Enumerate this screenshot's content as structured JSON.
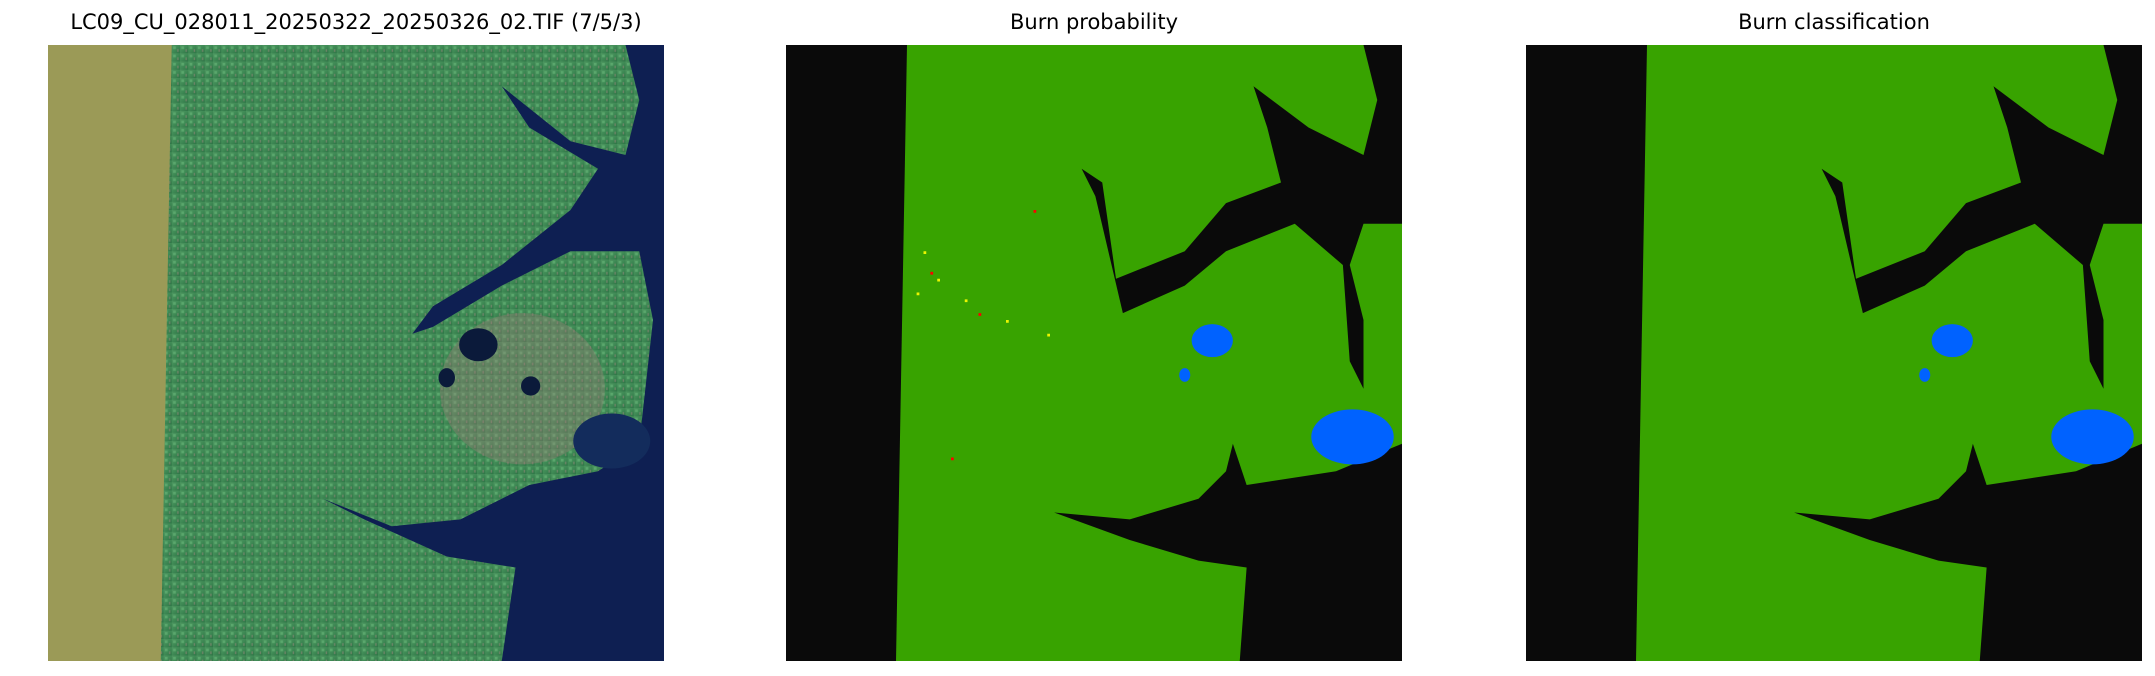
{
  "figure": {
    "panels": [
      {
        "title": "LC09_CU_028011_20250322_20250326_02.TIF (7/5/3)",
        "content": "false-color composite (bands 7/5/3)"
      },
      {
        "title": "Burn probability"
      },
      {
        "title": "Burn classification"
      }
    ],
    "colors": {
      "nodata_rgb": "#9b9a57",
      "land_rgb": "#3f8a55",
      "water_rgb": "#0e1f52",
      "unburned": "#38a300",
      "water_nodata": "#0a0a0a",
      "waterbody": "#0062ff",
      "burn_low": "#ffff00",
      "burn_high": "#ff0000",
      "cloud": "#ffffff"
    }
  }
}
